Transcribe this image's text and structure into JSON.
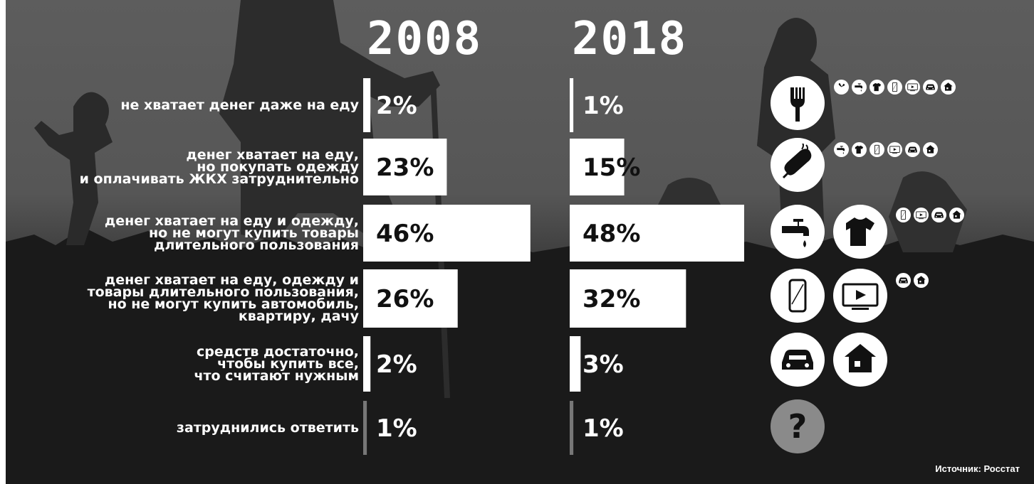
{
  "years": [
    "2008",
    "2018"
  ],
  "source": "Источник: Росстат",
  "chart_data": {
    "type": "bar",
    "categories": [
      "не хватает денег даже на еду",
      "денег хватает на еду,\nно покупать одежду\nи оплачивать ЖКХ затруднительно",
      "денег хватает на еду и одежду,\nно не могут купить товары\nдлительного пользования",
      "денег хватает на еду, одежду и\nтовары длительного пользования,\nно не могут купить автомобиль,\nквартиру, дачу",
      "средств достаточно,\nчтобы купить все,\nчто считают нужным",
      "затруднились ответить"
    ],
    "series": [
      {
        "name": "2008",
        "values": [
          2,
          23,
          46,
          26,
          2,
          1
        ]
      },
      {
        "name": "2018",
        "values": [
          1,
          15,
          48,
          32,
          3,
          1
        ]
      }
    ],
    "value_labels": {
      "2008": [
        "2%",
        "23%",
        "46%",
        "26%",
        "2%",
        "1%"
      ],
      "2018": [
        "1%",
        "15%",
        "48%",
        "32%",
        "3%",
        "1%"
      ]
    },
    "ylim": [
      0,
      48
    ],
    "colors": {
      "bar": "#ffffff",
      "low_bar": "#777777",
      "text_on_bar": "#111111",
      "text_on_dark": "#ffffff"
    }
  },
  "icons": {
    "rows": [
      {
        "big": [
          "fork-icon"
        ],
        "mini": [
          "fan-icon",
          "faucet-icon",
          "shirt-icon",
          "phone-icon",
          "tv-icon",
          "car-icon",
          "house-icon"
        ]
      },
      {
        "big": [
          "sausage-fork-icon"
        ],
        "mini": [
          "faucet-icon",
          "shirt-icon",
          "phone-icon",
          "tv-icon",
          "car-icon",
          "house-icon"
        ]
      },
      {
        "big": [
          "faucet-icon",
          "shirt-icon"
        ],
        "mini": [
          "phone-icon",
          "tv-icon",
          "car-icon",
          "house-icon"
        ]
      },
      {
        "big": [
          "phone-icon",
          "tv-icon"
        ],
        "mini": [
          "car-icon",
          "house-icon"
        ]
      },
      {
        "big": [
          "car-icon",
          "house-icon"
        ],
        "mini": []
      },
      {
        "big": [
          "question-icon"
        ],
        "mini": []
      }
    ]
  }
}
